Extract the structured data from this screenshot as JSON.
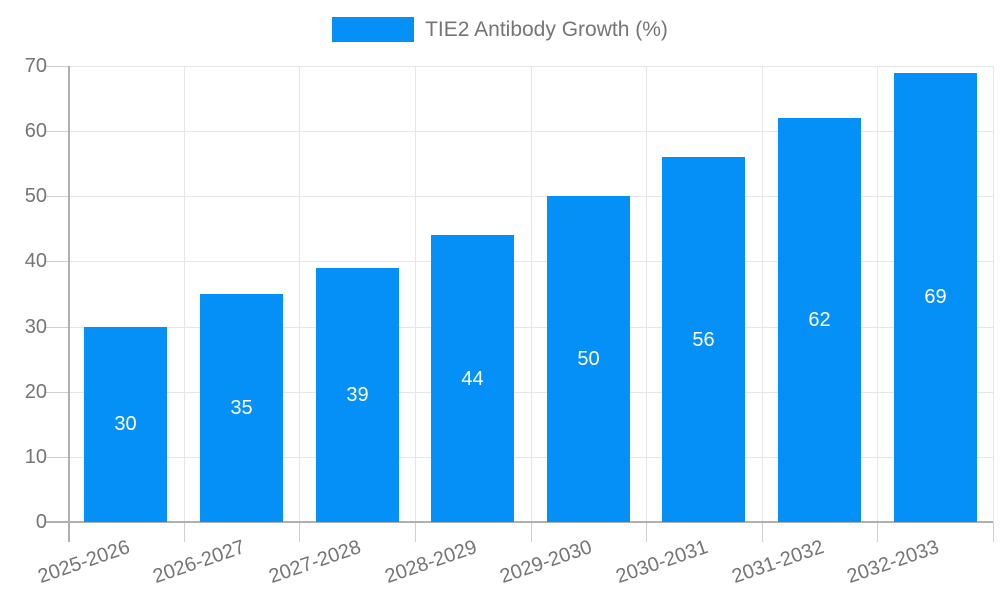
{
  "chart_data": {
    "type": "bar",
    "title": "",
    "legend": "TIE2 Antibody Growth (%)",
    "legend_position": "top-center",
    "categories": [
      "2025-2026",
      "2026-2027",
      "2027-2028",
      "2028-2029",
      "2029-2030",
      "2030-2031",
      "2031-2032",
      "2032-2033"
    ],
    "values": [
      30,
      35,
      39,
      44,
      50,
      56,
      62,
      69
    ],
    "yticks": [
      0,
      10,
      20,
      30,
      40,
      50,
      60,
      70
    ],
    "ylim": [
      0,
      70
    ],
    "xlabel": "",
    "ylabel": "",
    "grid": true,
    "bar_value_labels_inside": true,
    "colors": {
      "bar": "#0590f8",
      "bar_label": "#ffffff",
      "grid": "#e6e6e6",
      "axis": "#b0b0b0",
      "tick": "#cfcfcf",
      "text": "#757575",
      "background": "#ffffff"
    }
  }
}
